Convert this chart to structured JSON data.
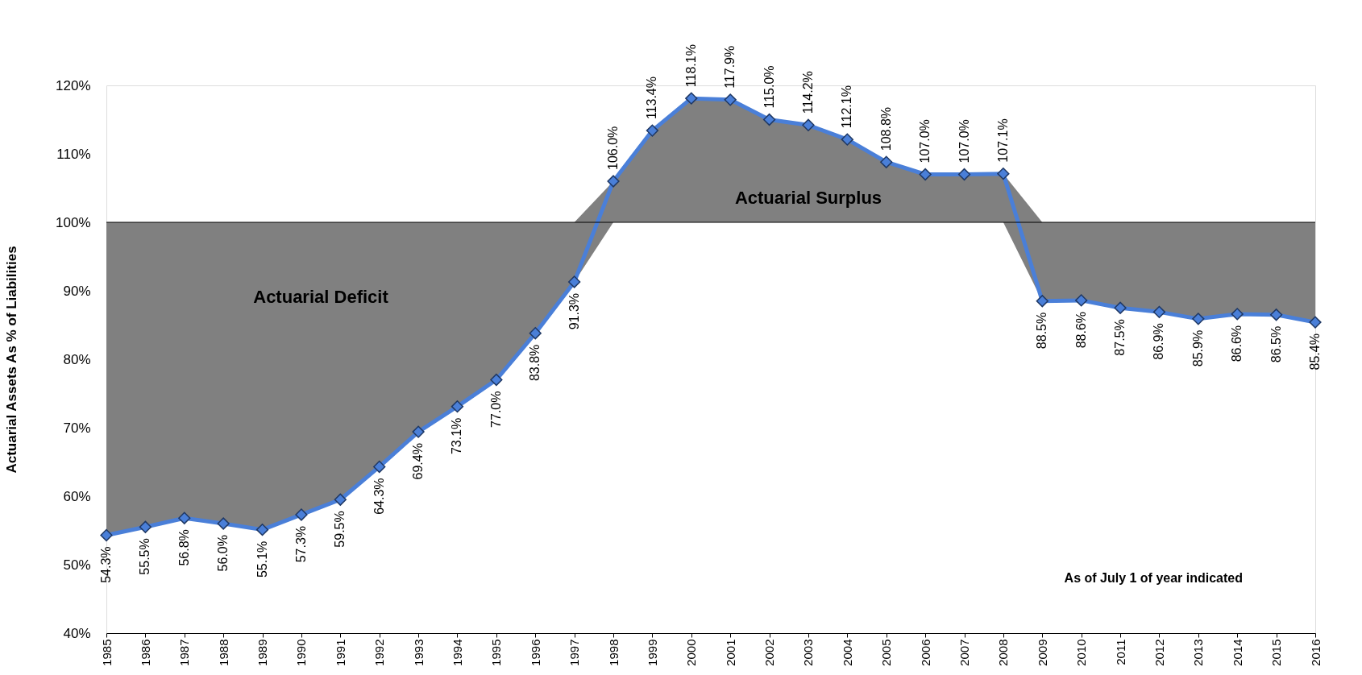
{
  "chart_data": {
    "type": "line",
    "ylabel": "Actuarial Assets As % of Liabilities",
    "x": [
      1985,
      1986,
      1987,
      1988,
      1989,
      1990,
      1991,
      1992,
      1993,
      1994,
      1995,
      1996,
      1997,
      1998,
      1999,
      2000,
      2001,
      2002,
      2003,
      2004,
      2005,
      2006,
      2007,
      2008,
      2009,
      2010,
      2011,
      2012,
      2013,
      2014,
      2015,
      2016
    ],
    "series": [
      {
        "color": "#4a7fd8",
        "values": [
          54.3,
          55.5,
          56.8,
          56.0,
          55.1,
          57.3,
          59.5,
          64.3,
          69.4,
          73.1,
          77.0,
          83.8,
          91.3,
          106.0,
          113.4,
          118.1,
          117.9,
          115.0,
          114.2,
          112.1,
          108.8,
          107.0,
          107.0,
          107.1,
          88.5,
          88.6,
          87.5,
          86.9,
          85.9,
          86.6,
          86.5,
          85.4
        ],
        "lower": [
          54.3,
          55.5,
          56.8,
          56.0,
          55.1,
          57.3,
          59.5,
          64.3,
          69.4,
          73.1,
          77.0,
          83.8,
          91.3,
          100,
          100,
          100,
          100,
          100,
          100,
          100,
          100,
          100,
          100,
          100,
          88.5,
          88.6,
          87.5,
          86.9,
          85.9,
          86.6,
          86.5,
          85.4
        ],
        "upper": [
          100,
          100,
          100,
          100,
          100,
          100,
          100,
          100,
          100,
          100,
          100,
          100,
          100,
          106.0,
          113.4,
          118.1,
          117.9,
          115.0,
          114.2,
          112.1,
          108.8,
          107.0,
          107.0,
          107.1,
          100,
          100,
          100,
          100,
          100,
          100,
          100,
          100
        ],
        "value_labels": [
          "54.3%",
          "55.5%",
          "56.8%",
          "56.0%",
          "55.1%",
          "57.3%",
          "59.5%",
          "64.3%",
          "69.4%",
          "73.1%",
          "77.0%",
          "83.8%",
          "91.3%",
          "106.0%",
          "113.4%",
          "118.1%",
          "117.9%",
          "115.0%",
          "114.2%",
          "112.1%",
          "108.8%",
          "107.0%",
          "107.0%",
          "107.1%",
          "88.5%",
          "88.6%",
          "87.5%",
          "86.9%",
          "85.9%",
          "86.6%",
          "86.5%",
          "85.4%"
        ]
      }
    ],
    "xlim": [
      1985,
      2016
    ],
    "xticks": [
      1985,
      1986,
      1987,
      1988,
      1989,
      1990,
      1991,
      1992,
      1993,
      1994,
      1995,
      1996,
      1997,
      1998,
      1999,
      2000,
      2001,
      2002,
      2003,
      2004,
      2005,
      2006,
      2007,
      2008,
      2009,
      2010,
      2011,
      2012,
      2013,
      2014,
      2015,
      2016
    ],
    "ylim": [
      40,
      120
    ],
    "yticks": [
      {
        "value": 40,
        "label": "40%"
      },
      {
        "value": 50,
        "label": "50%"
      },
      {
        "value": 60,
        "label": "60%"
      },
      {
        "value": 70,
        "label": "70%"
      },
      {
        "value": 80,
        "label": "80%"
      },
      {
        "value": 90,
        "label": "90%"
      },
      {
        "value": 100,
        "label": "100%"
      },
      {
        "value": 110,
        "label": "110%"
      },
      {
        "value": 120,
        "label": "120%"
      }
    ],
    "ref_lines": [
      {
        "axis": "y",
        "value": 100,
        "color": "#000000"
      }
    ],
    "annotations": [
      "Actuarial Deficit",
      "Actuarial Surplus",
      "As of July 1 of year indicated"
    ],
    "marker": "diamond",
    "grid": false
  }
}
